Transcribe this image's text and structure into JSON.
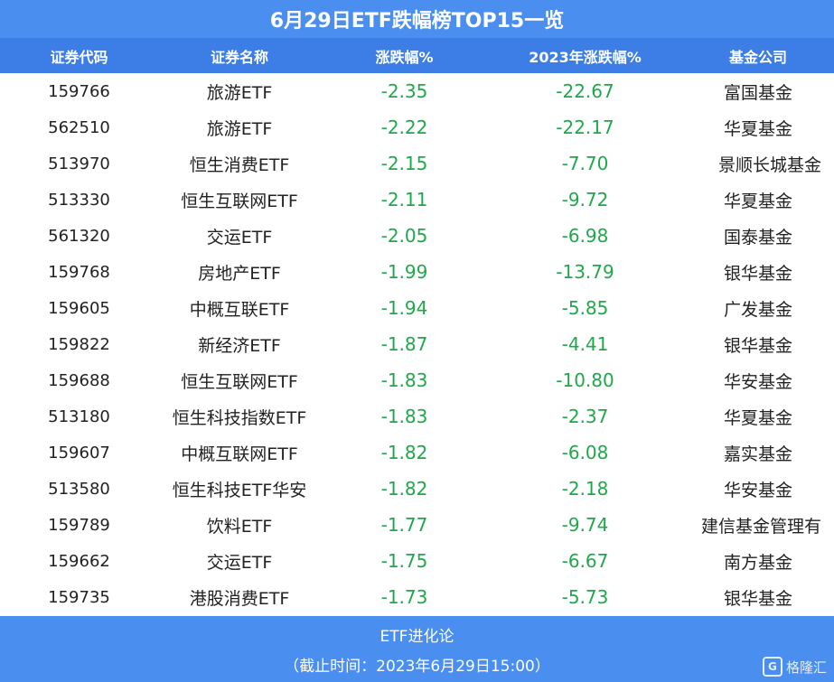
{
  "title": "6月29日ETF跌幅榜TOP15一览",
  "columns": [
    "证券代码",
    "证券名称",
    "涨跌幅%",
    "2023年涨跌幅%",
    "基金公司"
  ],
  "rows": [
    {
      "code": "159766",
      "name": "旅游ETF",
      "change": "-2.35",
      "ytd": "-22.67",
      "company": "富国基金"
    },
    {
      "code": "562510",
      "name": "旅游ETF",
      "change": "-2.22",
      "ytd": "-22.17",
      "company": "华夏基金"
    },
    {
      "code": "513970",
      "name": "恒生消费ETF",
      "change": "-2.15",
      "ytd": "-7.70",
      "company": "景顺长城基金"
    },
    {
      "code": "513330",
      "name": "恒生互联网ETF",
      "change": "-2.11",
      "ytd": "-9.72",
      "company": "华夏基金"
    },
    {
      "code": "561320",
      "name": "交运ETF",
      "change": "-2.05",
      "ytd": "-6.98",
      "company": "国泰基金"
    },
    {
      "code": "159768",
      "name": "房地产ETF",
      "change": "-1.99",
      "ytd": "-13.79",
      "company": "银华基金"
    },
    {
      "code": "159605",
      "name": "中概互联ETF",
      "change": "-1.94",
      "ytd": "-5.85",
      "company": "广发基金"
    },
    {
      "code": "159822",
      "name": "新经济ETF",
      "change": "-1.87",
      "ytd": "-4.41",
      "company": "银华基金"
    },
    {
      "code": "159688",
      "name": "恒生互联网ETF",
      "change": "-1.83",
      "ytd": "-10.80",
      "company": "华安基金"
    },
    {
      "code": "513180",
      "name": "恒生科技指数ETF",
      "change": "-1.83",
      "ytd": "-2.37",
      "company": "华夏基金"
    },
    {
      "code": "159607",
      "name": "中概互联网ETF",
      "change": "-1.82",
      "ytd": "-6.08",
      "company": "嘉实基金"
    },
    {
      "code": "513580",
      "name": "恒生科技ETF华安",
      "change": "-1.82",
      "ytd": "-2.18",
      "company": "华安基金"
    },
    {
      "code": "159789",
      "name": "饮料ETF",
      "change": "-1.77",
      "ytd": "-9.74",
      "company": "建信基金管理有"
    },
    {
      "code": "159662",
      "name": "交运ETF",
      "change": "-1.75",
      "ytd": "-6.67",
      "company": "南方基金"
    },
    {
      "code": "159735",
      "name": "港股消费ETF",
      "change": "-1.73",
      "ytd": "-5.73",
      "company": "银华基金"
    }
  ],
  "footer": {
    "source": "ETF进化论",
    "timestamp": "（截止时间：2023年6月29日15:00）"
  },
  "watermark": {
    "logo_letter": "G",
    "text": "格隆汇"
  },
  "colors": {
    "title_bg": "#4a8ef0",
    "header_bg": "#3d7ee6",
    "negative": "#1fa84a",
    "text": "#222222"
  }
}
